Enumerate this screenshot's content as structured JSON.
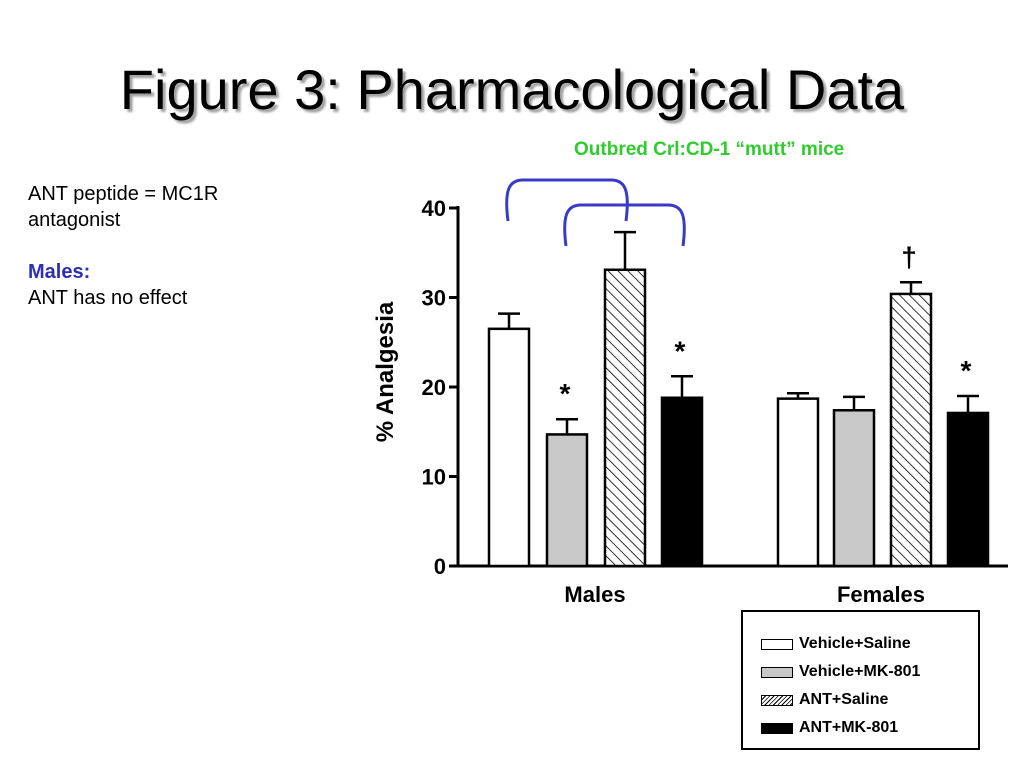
{
  "slide": {
    "title": "Figure 3: Pharmacological Data",
    "subtitle": "Outbred Crl:CD-1 “mutt” mice",
    "notes": {
      "line1": "ANT peptide = MC1R",
      "line2": "antagonist",
      "males_heading": "Males:",
      "males_text": "ANT has no effect"
    }
  },
  "colors": {
    "subtitle": "#2ecc2e",
    "males_heading": "#2d2db8",
    "bracket": "#3a3ac8",
    "vehicle_saline": "#ffffff",
    "vehicle_mk801": "#c8c8c8",
    "ant_saline": "hatched",
    "ant_mk801": "#000000"
  },
  "chart_data": {
    "type": "bar",
    "ylabel": "% Analgesia",
    "xlabel": "",
    "ylim": [
      0,
      40
    ],
    "yticks": [
      "0",
      "10",
      "20",
      "30",
      "40"
    ],
    "categories": [
      "Males",
      "Females"
    ],
    "series": [
      {
        "name": "Vehicle+Saline",
        "fill": "white",
        "values": [
          26.5,
          18.7
        ],
        "errors": [
          1.7,
          0.6
        ],
        "markers": [
          "",
          ""
        ]
      },
      {
        "name": "Vehicle+MK-801",
        "fill": "gray",
        "values": [
          14.7,
          17.4
        ],
        "errors": [
          1.7,
          1.5
        ],
        "markers": [
          "*",
          ""
        ]
      },
      {
        "name": "ANT+Saline",
        "fill": "hatch",
        "values": [
          33.1,
          30.4
        ],
        "errors": [
          4.2,
          1.3
        ],
        "markers": [
          "",
          "†"
        ]
      },
      {
        "name": "ANT+MK-801",
        "fill": "black",
        "values": [
          18.8,
          17.1
        ],
        "errors": [
          2.4,
          1.9
        ],
        "markers": [
          "*",
          "*"
        ]
      }
    ],
    "brackets": [
      {
        "group": "Males",
        "from_bar": 0,
        "to_bar": 2
      },
      {
        "group": "Males",
        "from_bar": 1,
        "to_bar": 3
      }
    ],
    "legend_position": "bottom-right",
    "grid": false
  }
}
